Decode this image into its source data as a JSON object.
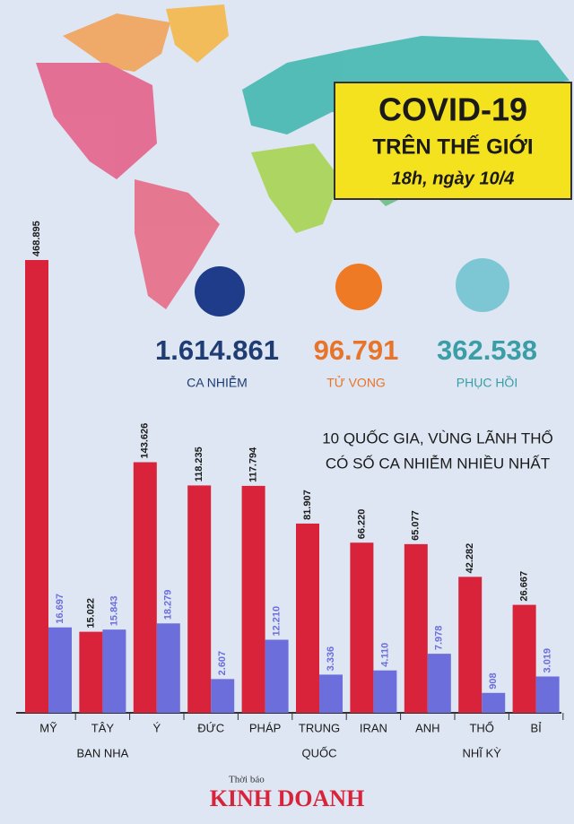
{
  "header": {
    "title": "COVID-19",
    "subtitle": "TRÊN THẾ GIỚI",
    "time": "18h, ngày 10/4"
  },
  "summary": [
    {
      "value": "1.614.861",
      "label": "CA NHIỄM",
      "color": "#1f3c73"
    },
    {
      "value": "96.791",
      "label": "TỬ VONG",
      "color": "#e8742a"
    },
    {
      "value": "362.538",
      "label": "PHỤC HỒI",
      "color": "#3a9ea6"
    }
  ],
  "chart_data": {
    "type": "bar",
    "title": [
      "10 QUỐC GIA, VÙNG LÃNH THỔ",
      "CÓ SỐ CA NHIỄM NHIỀU NHẤT"
    ],
    "categories": [
      [
        "MỸ"
      ],
      [
        "TÂY",
        "BAN NHA"
      ],
      [
        "Ý"
      ],
      [
        "ĐỨC"
      ],
      [
        "PHÁP"
      ],
      [
        "TRUNG",
        "QUỐC"
      ],
      [
        "IRAN"
      ],
      [
        "ANH"
      ],
      [
        "THỔ",
        "NHĨ KỲ"
      ],
      [
        "BỈ"
      ]
    ],
    "series": [
      {
        "color": "#d8233a",
        "values": [
          468895,
          15022,
          143626,
          118235,
          117794,
          81907,
          66220,
          65077,
          42282,
          26667
        ],
        "value_labels": [
          "468.895",
          "15.022",
          "143.626",
          "118.235",
          "117.794",
          "81.907",
          "66.220",
          "65.077",
          "42.282",
          "26.667"
        ]
      },
      {
        "color": "#6c6edb",
        "values": [
          16697,
          15843,
          18279,
          2607,
          12210,
          3336,
          4110,
          7978,
          908,
          3019
        ],
        "value_labels": [
          "16.697",
          "15.843",
          "18.279",
          "2.607",
          "12.210",
          "3.336",
          "4.110",
          "7.978",
          "908",
          "3.019"
        ]
      }
    ]
  },
  "footer": {
    "small": "Thời báo",
    "brand": "KINH DOANH"
  }
}
